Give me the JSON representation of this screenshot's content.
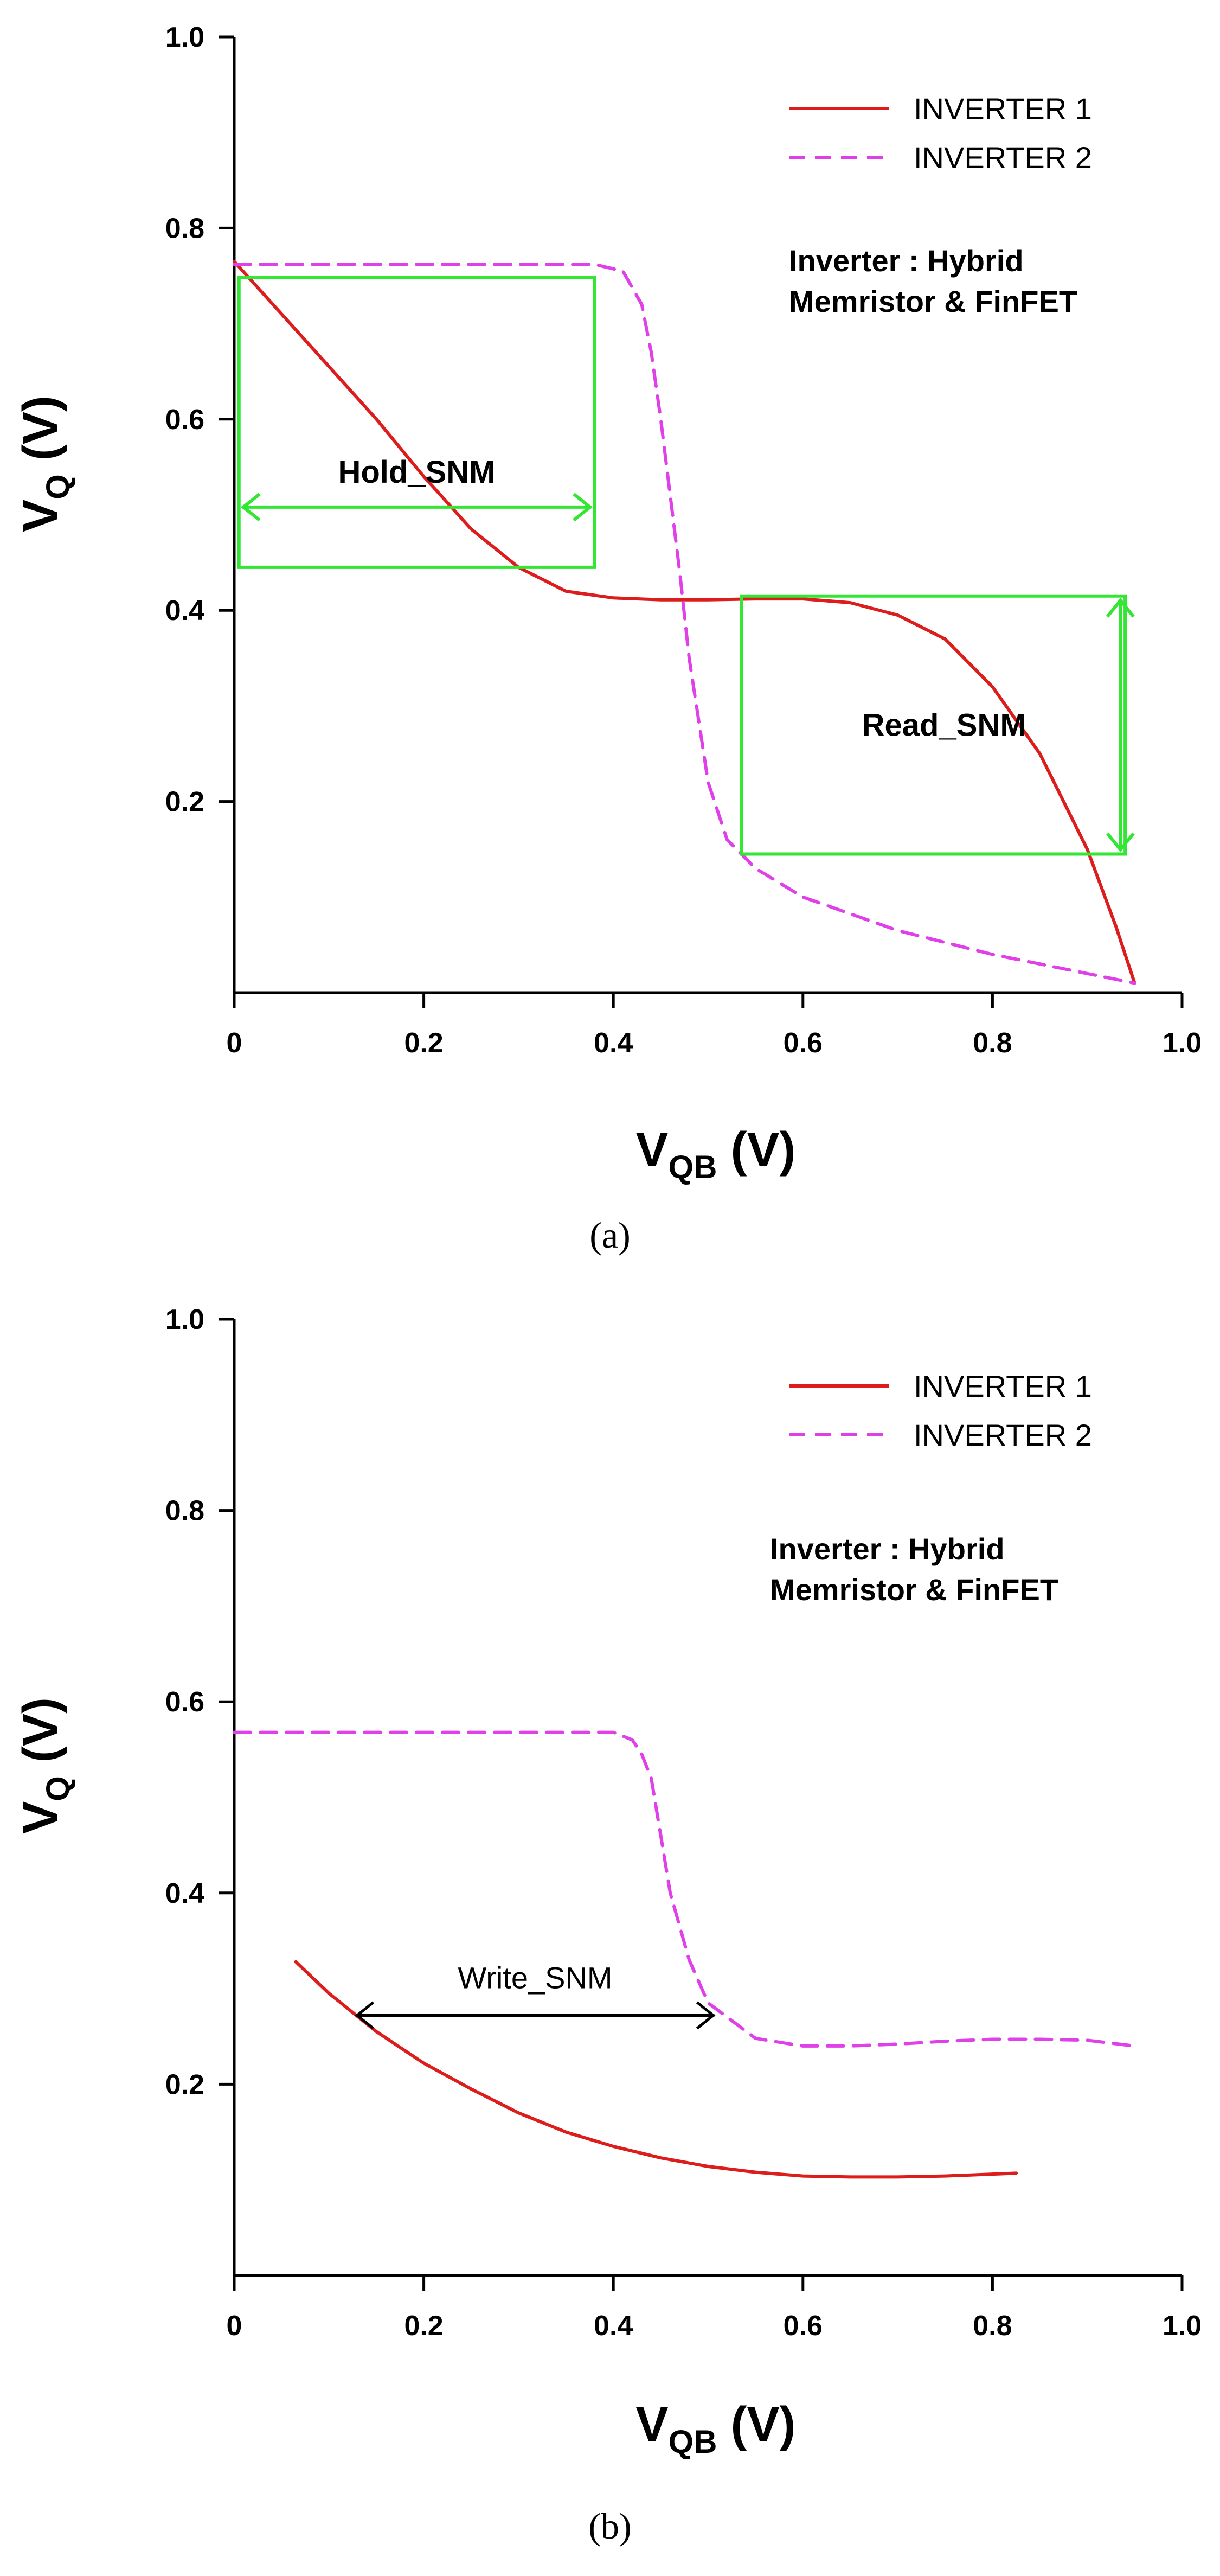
{
  "colors": {
    "inverter1": "#dd1c1c",
    "inverter2": "#e040e8",
    "snm_box": "#33e633",
    "write_arrow": "#000000"
  },
  "chart_data": [
    {
      "type": "line",
      "panel_label": "(a)",
      "title": "",
      "xlabel": "V",
      "xlabel_sub": "QB",
      "xlabel_unit": " (V)",
      "ylabel": "V",
      "ylabel_sub": "Q",
      "ylabel_unit": " (V)",
      "xlim": [
        0,
        1.0
      ],
      "ylim": [
        0,
        1.0
      ],
      "xticks": [
        "0",
        "0.2",
        "0.4",
        "0.6",
        "0.8",
        "1.0"
      ],
      "yticks": [
        "0.2",
        "0.4",
        "0.6",
        "0.8",
        "1.0"
      ],
      "legend_position": "top-right",
      "annotation": [
        "Inverter : Hybrid",
        "Memristor & FinFET"
      ],
      "series": [
        {
          "name": "INVERTER 1",
          "style": "solid",
          "x": [
            0.0,
            0.05,
            0.1,
            0.15,
            0.2,
            0.25,
            0.3,
            0.35,
            0.4,
            0.45,
            0.5,
            0.55,
            0.6,
            0.65,
            0.7,
            0.75,
            0.8,
            0.85,
            0.9,
            0.93,
            0.95
          ],
          "y": [
            0.765,
            0.71,
            0.655,
            0.6,
            0.54,
            0.485,
            0.445,
            0.42,
            0.413,
            0.411,
            0.411,
            0.412,
            0.412,
            0.408,
            0.395,
            0.37,
            0.32,
            0.25,
            0.15,
            0.07,
            0.01
          ]
        },
        {
          "name": "INVERTER 2",
          "style": "dashed",
          "x": [
            0.0,
            0.1,
            0.2,
            0.3,
            0.38,
            0.41,
            0.43,
            0.44,
            0.45,
            0.46,
            0.47,
            0.48,
            0.5,
            0.52,
            0.55,
            0.6,
            0.7,
            0.8,
            0.9,
            0.95
          ],
          "y": [
            0.762,
            0.762,
            0.762,
            0.762,
            0.762,
            0.755,
            0.72,
            0.67,
            0.6,
            0.52,
            0.44,
            0.35,
            0.22,
            0.16,
            0.13,
            0.1,
            0.065,
            0.04,
            0.02,
            0.01
          ]
        }
      ],
      "snm_boxes": [
        {
          "label": "Hold_SNM",
          "x0": 0.005,
          "x1": 0.38,
          "y0": 0.445,
          "y1": 0.748,
          "arrow": "horizontal",
          "arrow_y": 0.508
        },
        {
          "label": "Read_SNM",
          "x0": 0.535,
          "x1": 0.94,
          "y0": 0.145,
          "y1": 0.415,
          "arrow": "vertical",
          "arrow_x": 0.935
        }
      ]
    },
    {
      "type": "line",
      "panel_label": "(b)",
      "title": "",
      "xlabel": "V",
      "xlabel_sub": "QB",
      "xlabel_unit": " (V)",
      "ylabel": "V",
      "ylabel_sub": "Q",
      "ylabel_unit": " (V)",
      "xlim": [
        0,
        1.0
      ],
      "ylim": [
        0,
        1.0
      ],
      "xticks": [
        "0",
        "0.2",
        "0.4",
        "0.6",
        "0.8",
        "1.0"
      ],
      "yticks": [
        "0.2",
        "0.4",
        "0.6",
        "0.8",
        "1.0"
      ],
      "legend_position": "top-right",
      "annotation": [
        "Inverter : Hybrid",
        "Memristor & FinFET"
      ],
      "series": [
        {
          "name": "INVERTER 1",
          "style": "solid",
          "x": [
            0.065,
            0.1,
            0.15,
            0.2,
            0.25,
            0.3,
            0.35,
            0.4,
            0.45,
            0.5,
            0.55,
            0.6,
            0.65,
            0.7,
            0.75,
            0.8,
            0.825
          ],
          "y": [
            0.328,
            0.295,
            0.255,
            0.222,
            0.195,
            0.17,
            0.15,
            0.135,
            0.123,
            0.114,
            0.108,
            0.104,
            0.103,
            0.103,
            0.104,
            0.106,
            0.107
          ]
        },
        {
          "name": "INVERTER 2",
          "style": "dashed",
          "x": [
            0.0,
            0.1,
            0.2,
            0.3,
            0.4,
            0.42,
            0.43,
            0.44,
            0.45,
            0.46,
            0.48,
            0.5,
            0.55,
            0.6,
            0.65,
            0.7,
            0.75,
            0.8,
            0.85,
            0.9,
            0.95
          ],
          "y": [
            0.568,
            0.568,
            0.568,
            0.568,
            0.568,
            0.56,
            0.545,
            0.52,
            0.46,
            0.4,
            0.33,
            0.285,
            0.248,
            0.24,
            0.24,
            0.242,
            0.245,
            0.247,
            0.247,
            0.246,
            0.24
          ]
        }
      ],
      "write_snm": {
        "label": "Write_SNM",
        "x0": 0.125,
        "x1": 0.51,
        "y": 0.272
      }
    }
  ]
}
